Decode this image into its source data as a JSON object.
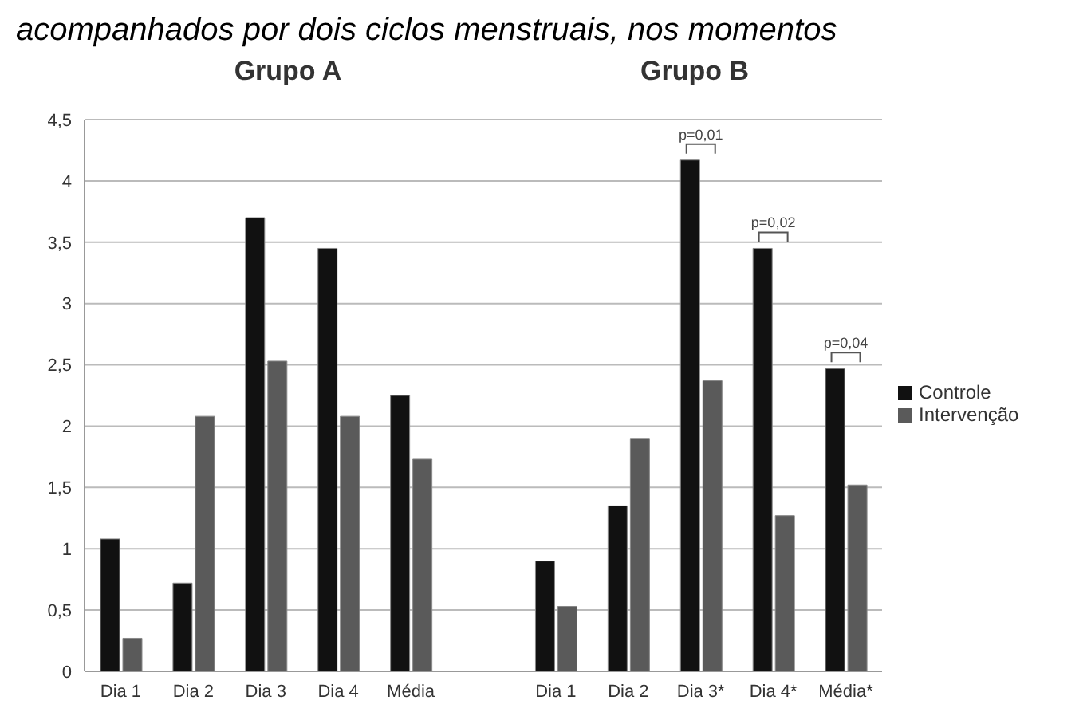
{
  "chart_data": {
    "type": "bar",
    "title": "acompanhados por dois ciclos menstruais, nos momentos",
    "categories": [
      "Dia 1",
      "Dia 2",
      "Dia 3",
      "Dia 4",
      "Média",
      null,
      "Dia 1",
      "Dia 2",
      "Dia 3*",
      "Dia 4*",
      "Média*"
    ],
    "series": [
      {
        "name": "Controle",
        "color": "#111111",
        "values": [
          1.08,
          0.72,
          3.7,
          3.45,
          2.25,
          null,
          0.9,
          1.35,
          4.17,
          3.45,
          2.47
        ]
      },
      {
        "name": "Intervenção",
        "color": "#5a5a5a",
        "values": [
          0.27,
          2.08,
          2.53,
          2.08,
          1.73,
          null,
          0.53,
          1.9,
          2.37,
          1.27,
          1.52
        ]
      }
    ],
    "ylim": [
      0,
      4.5
    ],
    "yticks": [
      0,
      {
        "value": 0.5,
        "label": "0,5"
      },
      1,
      {
        "value": 1.5,
        "label": "1,5"
      },
      2,
      {
        "value": 2.5,
        "label": "2,5"
      },
      3,
      {
        "value": 3.5,
        "label": "3,5"
      },
      4,
      {
        "value": 4.5,
        "label": "4,5"
      }
    ],
    "grid": "y",
    "legend": "right",
    "annotations": [
      "Grupo A",
      "Grupo B",
      {
        "text": "p=0,01",
        "x": "Dia 3*",
        "y": 4.17
      },
      {
        "text": "p=0,02",
        "x": "Dia 4*",
        "y": 3.45
      },
      {
        "text": "p=0,04",
        "x": "Média*",
        "y": 2.47
      }
    ]
  }
}
